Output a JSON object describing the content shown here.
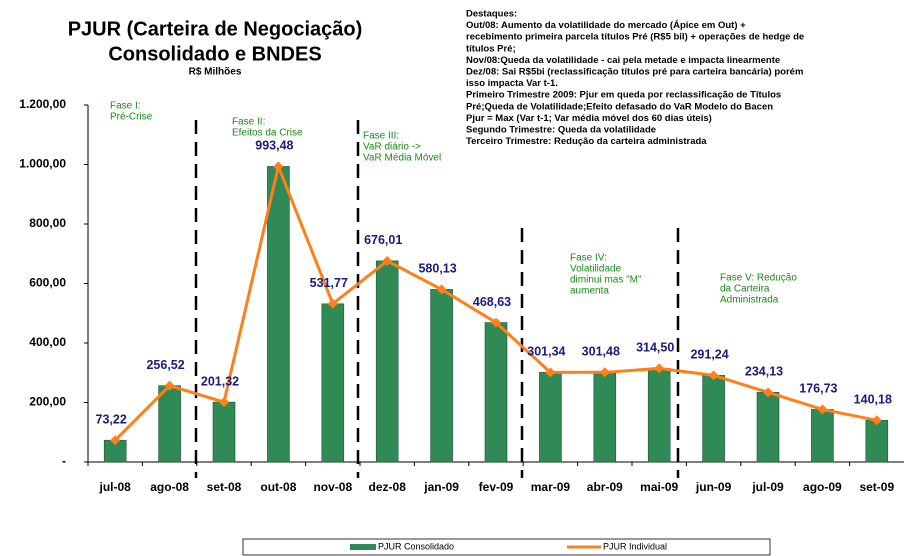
{
  "chart_data": {
    "type": "bar_line",
    "title": [
      "PJUR (Carteira de Negociação)",
      "Consolidado e BNDES"
    ],
    "subtitle": "R$ Milhões",
    "notes": [
      "Destaques:",
      "Out/08: Aumento da volatilidade do mercado (Ápice em Out) +",
      "recebimento primeira parcela títulos Pré (R$5 bil) + operações  de hedge de",
      "títulos Pré;",
      "Nov/08:Queda da volatilidade - cai pela metade e impacta linearmente",
      "Dez/08: Sai R$5bi (reclassificação  títulos pré para carteira bancária) porém",
      "isso impacta Var t-1.",
      "Primeiro Trimestre 2009:  Pjur em queda por reclassificação de Títulos",
      "Pré;Queda de Volatilidade;Efeito defasado do VaR Modelo do Bacen",
      "Pjur = Max (Var t-1;  Var média móvel dos 60 dias úteis)",
      "Segundo Trimestre:  Queda da volatilidade",
      "Terceiro Trimestre:  Redução da carteira administrada"
    ],
    "annotations": [
      {
        "lines": [
          "Fase I:",
          "Pré-Crise"
        ]
      },
      {
        "lines": [
          "Fase II:",
          "Efeitos da Crise"
        ]
      },
      {
        "lines": [
          "Fase III:",
          "VaR diário ->",
          "VaR Média Móvel"
        ]
      },
      {
        "lines": [
          "Fase IV:",
          "Volatilidade",
          "diminui mas \"M\"",
          "aumenta"
        ]
      },
      {
        "lines": [
          "Fase V: Redução",
          "da Carteira",
          "Administrada"
        ]
      }
    ],
    "categories": [
      "jul-08",
      "ago-08",
      "set-08",
      "out-08",
      "nov-08",
      "dez-08",
      "jan-09",
      "fev-09",
      "mar-09",
      "abr-09",
      "mai-09",
      "jun-09",
      "jul-09",
      "ago-09",
      "set-09"
    ],
    "series": [
      {
        "name": "PJUR Consolidado",
        "kind": "bar",
        "color": "#2f8a55",
        "values": [
          73.22,
          256.52,
          201.32,
          993.48,
          531.77,
          676.01,
          580.13,
          468.63,
          301.34,
          301.48,
          314.5,
          291.24,
          234.13,
          176.73,
          140.18
        ],
        "value_labels": [
          "73,22",
          "256,52",
          "201,32",
          "993,48",
          "531,77",
          "676,01",
          "580,13",
          "468,63",
          "301,34",
          "301,48",
          "314,50",
          "291,24",
          "234,13",
          "176,73",
          "140,18"
        ]
      },
      {
        "name": "PJUR Individual",
        "kind": "line",
        "color": "#ff7f1a",
        "values": [
          73.22,
          256.52,
          201.32,
          993.48,
          531.77,
          676.01,
          580.13,
          468.63,
          301.34,
          301.48,
          314.5,
          291.24,
          234.13,
          176.73,
          140.18
        ]
      }
    ],
    "ylim": [
      0,
      1200
    ],
    "yticks": [
      {
        "value": 0,
        "label": "-"
      },
      {
        "value": 200,
        "label": "200,00"
      },
      {
        "value": 400,
        "label": "400,00"
      },
      {
        "value": 600,
        "label": "600,00"
      },
      {
        "value": 800,
        "label": "800,00"
      },
      {
        "value": 1000,
        "label": "1.000,00"
      },
      {
        "value": 1200,
        "label": "1.200,00"
      }
    ],
    "legend": "bottom"
  }
}
